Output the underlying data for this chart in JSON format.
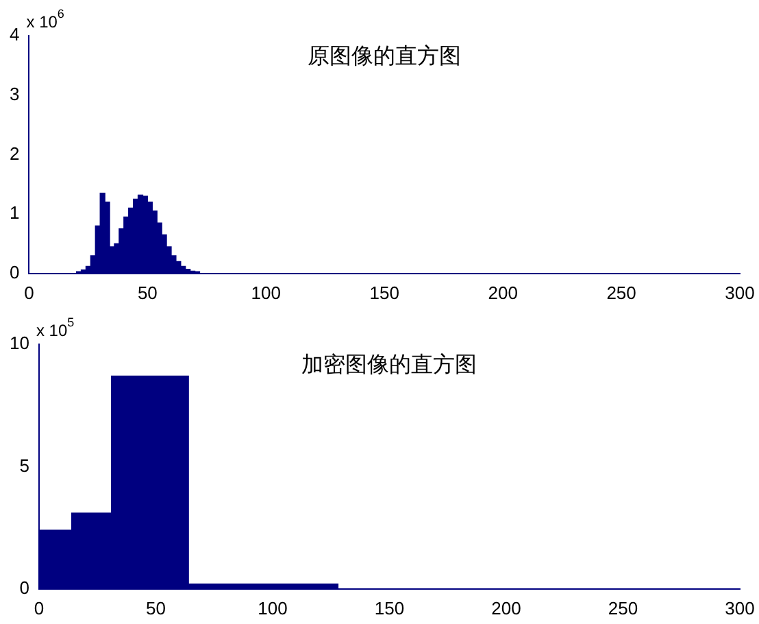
{
  "chart_data": [
    {
      "type": "histogram",
      "title": "原图像的直方图",
      "annotations": [
        "x 10$^{6}$"
      ],
      "color": "#000080",
      "bins": [
        20,
        22,
        24,
        26,
        28,
        30,
        32,
        34,
        36,
        38,
        40,
        42,
        44,
        46,
        48,
        50,
        52,
        54,
        56,
        58,
        60,
        62,
        64,
        66,
        68,
        70,
        72
      ],
      "values": [
        0.03,
        0.06,
        0.12,
        0.3,
        0.8,
        1.35,
        1.2,
        0.45,
        0.5,
        0.75,
        0.95,
        1.1,
        1.25,
        1.32,
        1.3,
        1.2,
        1.05,
        0.85,
        0.65,
        0.45,
        0.3,
        0.2,
        0.12,
        0.07,
        0.04,
        0.03
      ],
      "xlim": [
        0,
        300
      ],
      "xticks": [
        0,
        50,
        100,
        150,
        200,
        250,
        300
      ],
      "ylim": [
        0,
        4
      ],
      "yticks": [
        0,
        1,
        2,
        3,
        4
      ]
    },
    {
      "type": "histogram",
      "title": "加密图像的直方图",
      "annotations": [
        "x 10$^{5}$"
      ],
      "color": "#000080",
      "bins": [
        0,
        14,
        31,
        64,
        128
      ],
      "values": [
        2.4,
        3.1,
        8.7,
        0.2
      ],
      "xlim": [
        0,
        300
      ],
      "xticks": [
        0,
        50,
        100,
        150,
        200,
        250,
        300
      ],
      "ylim": [
        0,
        10
      ],
      "yticks": [
        0,
        5,
        10
      ]
    }
  ]
}
